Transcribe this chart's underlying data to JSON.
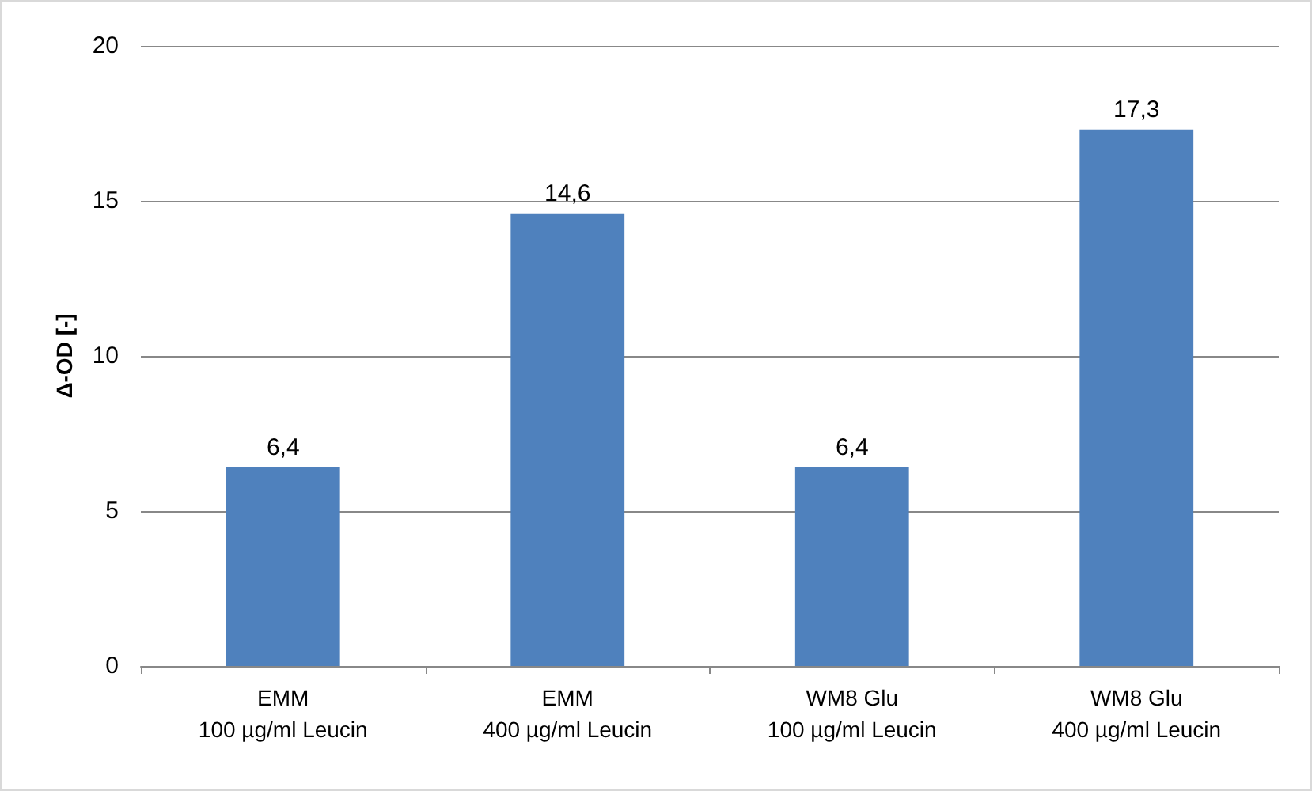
{
  "chart_data": {
    "type": "bar",
    "ylabel": "Δ-OD [-]",
    "categories": [
      "EMM\n100 µg/ml Leucin",
      "EMM\n400 µg/ml Leucin",
      "WM8 Glu\n100 µg/ml Leucin",
      "WM8 Glu\n400 µg/ml Leucin"
    ],
    "values": [
      6.4,
      14.6,
      6.4,
      17.3
    ],
    "value_labels": [
      "6,4",
      "14,6",
      "6,4",
      "17,3"
    ],
    "color": "#4f81bd",
    "ylim": [
      0,
      20
    ],
    "yticks": [
      0,
      5,
      10,
      15,
      20
    ],
    "grid": "y"
  }
}
